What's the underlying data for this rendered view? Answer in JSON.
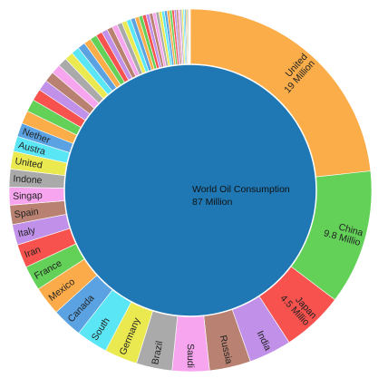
{
  "chart_data": {
    "type": "sunburst",
    "center": {
      "line1": "World Oil Consumption",
      "line2": "87 Million",
      "color": "#1f77b4"
    },
    "value_unit": "million barrels per day",
    "slices": [
      {
        "label": "United",
        "value_label": "19 Million",
        "value": 19.0,
        "color": "#fbad49",
        "show_label": true
      },
      {
        "label": "China",
        "value_label": "9.8 Millio",
        "value": 9.8,
        "color": "#63d158",
        "show_label": true
      },
      {
        "label": "Japan",
        "value_label": "4.5 Millio",
        "value": 4.5,
        "color": "#f7524d",
        "show_label": true
      },
      {
        "label": "India",
        "value_label": "",
        "value": 3.1,
        "color": "#c191ea",
        "show_label": true
      },
      {
        "label": "Russia",
        "value_label": "",
        "value": 3.0,
        "color": "#b98171",
        "show_label": true
      },
      {
        "label": "Saudi",
        "value_label": "",
        "value": 2.7,
        "color": "#f7a5ef",
        "show_label": true
      },
      {
        "label": "Brazil",
        "value_label": "",
        "value": 2.6,
        "color": "#aaaaaa",
        "show_label": true
      },
      {
        "label": "Germany",
        "value_label": "",
        "value": 2.4,
        "color": "#eae94f",
        "show_label": true
      },
      {
        "label": "South",
        "value_label": "",
        "value": 2.3,
        "color": "#5be6f6",
        "show_label": true
      },
      {
        "label": "Canada",
        "value_label": "",
        "value": 2.2,
        "color": "#5aa2e1",
        "show_label": true
      },
      {
        "label": "Mexico",
        "value_label": "",
        "value": 2.1,
        "color": "#fbab49",
        "show_label": true
      },
      {
        "label": "France",
        "value_label": "",
        "value": 1.8,
        "color": "#63d158",
        "show_label": true
      },
      {
        "label": "Iran",
        "value_label": "",
        "value": 1.7,
        "color": "#f7524d",
        "show_label": true
      },
      {
        "label": "Italy",
        "value_label": "",
        "value": 1.5,
        "color": "#c191ea",
        "show_label": true
      },
      {
        "label": "Spain",
        "value_label": "",
        "value": 1.4,
        "color": "#b98171",
        "show_label": true
      },
      {
        "label": "Singap",
        "value_label": "",
        "value": 1.3,
        "color": "#f7a5ef",
        "show_label": true
      },
      {
        "label": "Indone",
        "value_label": "",
        "value": 1.3,
        "color": "#aaaaaa",
        "show_label": true
      },
      {
        "label": "United",
        "value_label": "",
        "value": 1.3,
        "color": "#eae94f",
        "show_label": true
      },
      {
        "label": "Austra",
        "value_label": "",
        "value": 1.1,
        "color": "#5be6f6",
        "show_label": true
      },
      {
        "label": "Nether",
        "value_label": "",
        "value": 1.0,
        "color": "#5aa2e1",
        "show_label": true
      }
    ],
    "small_slice_colors": [
      "#fbad49",
      "#63d158",
      "#f7524d",
      "#c191ea",
      "#b98171",
      "#f7a5ef",
      "#aaaaaa",
      "#eae94f",
      "#5be6f6",
      "#5aa2e1"
    ],
    "small_slice_values": [
      0.95,
      0.9,
      0.85,
      0.8,
      0.75,
      0.7,
      0.66,
      0.62,
      0.58,
      0.55,
      0.52,
      0.49,
      0.46,
      0.43,
      0.41,
      0.39,
      0.37,
      0.35,
      0.33,
      0.31,
      0.29,
      0.27,
      0.26,
      0.25,
      0.24,
      0.23,
      0.22,
      0.21,
      0.2,
      0.19,
      0.18,
      0.17,
      0.16,
      0.15,
      0.14,
      0.13,
      0.12,
      0.11,
      0.1,
      0.09,
      0.08,
      0.07,
      0.06,
      0.05,
      0.04,
      0.03
    ]
  }
}
